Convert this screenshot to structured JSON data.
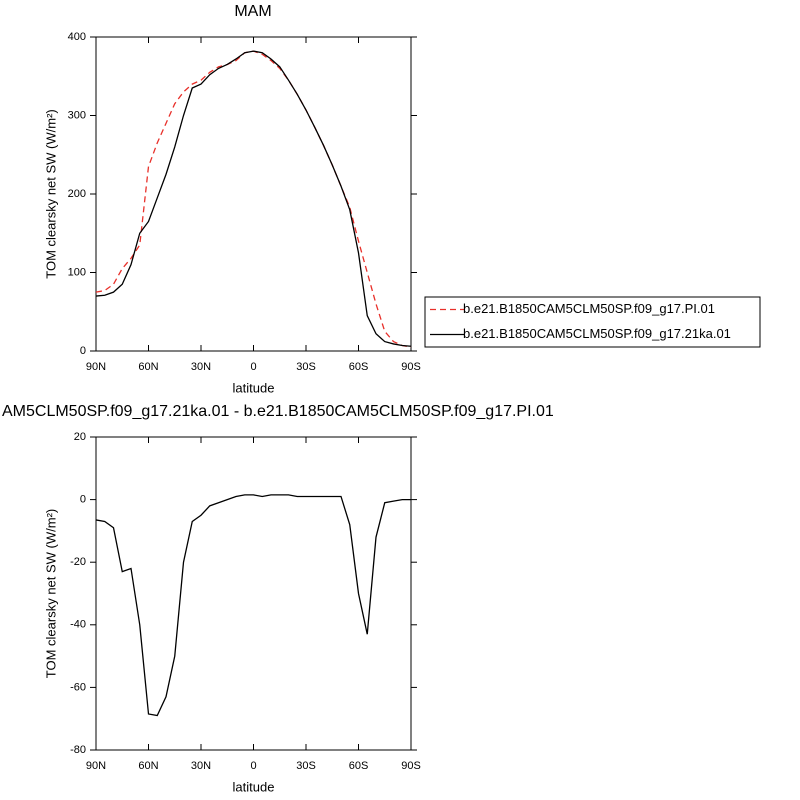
{
  "chart_data": [
    {
      "type": "line",
      "title": "MAM",
      "xlabel": "latitude",
      "ylabel": "TOM clearsky net SW (W/m²)",
      "x": [
        90,
        85,
        80,
        75,
        70,
        65,
        60,
        55,
        50,
        45,
        40,
        35,
        30,
        25,
        20,
        15,
        10,
        5,
        0,
        -5,
        -10,
        -15,
        -20,
        -25,
        -30,
        -35,
        -40,
        -45,
        -50,
        -55,
        -60,
        -65,
        -70,
        -75,
        -80,
        -85,
        -90
      ],
      "xlim": [
        90,
        -90
      ],
      "xticks": [
        {
          "value": 90,
          "label": "90N"
        },
        {
          "value": 60,
          "label": "60N"
        },
        {
          "value": 30,
          "label": "30N"
        },
        0,
        {
          "value": -30,
          "label": "30S"
        },
        {
          "value": -60,
          "label": "60S"
        },
        {
          "value": -90,
          "label": "90S"
        }
      ],
      "ylim": [
        0,
        400
      ],
      "yticks": [
        0,
        100,
        200,
        300,
        400
      ],
      "legend": "right",
      "series": [
        {
          "name": "b.e21.B1850CAM5CLM50SP.f09_g17.PI.01",
          "color": "#e8302a",
          "dashed": true,
          "values": [
            75,
            77,
            85,
            105,
            118,
            135,
            235,
            265,
            290,
            315,
            330,
            340,
            345,
            355,
            362,
            365,
            370,
            380,
            382,
            378,
            370,
            360,
            345,
            327,
            307,
            285,
            262,
            237,
            210,
            183,
            140,
            100,
            60,
            25,
            12,
            7,
            5
          ]
        },
        {
          "name": "b.e21.B1850CAM5CLM50SP.f09_g17.21ka.01",
          "color": "#000000",
          "dashed": false,
          "values": [
            70,
            71,
            75,
            85,
            110,
            150,
            165,
            195,
            225,
            260,
            300,
            335,
            340,
            352,
            360,
            365,
            372,
            380,
            382,
            380,
            372,
            362,
            345,
            327,
            307,
            285,
            262,
            237,
            210,
            180,
            125,
            45,
            22,
            12,
            9,
            7,
            6
          ]
        }
      ]
    },
    {
      "type": "line",
      "title": "AM5CLM50SP.f09_g17.21ka.01 - b.e21.B1850CAM5CLM50SP.f09_g17.PI.01",
      "xlabel": "latitude",
      "ylabel": "TOM clearsky net SW (W/m²)",
      "x": [
        90,
        85,
        80,
        75,
        70,
        65,
        60,
        55,
        50,
        45,
        40,
        35,
        30,
        25,
        20,
        15,
        10,
        5,
        0,
        -5,
        -10,
        -15,
        -20,
        -25,
        -30,
        -35,
        -40,
        -45,
        -50,
        -55,
        -60,
        -65,
        -70,
        -75,
        -80,
        -85,
        -90
      ],
      "xlim": [
        90,
        -90
      ],
      "xticks": [
        {
          "value": 90,
          "label": "90N"
        },
        {
          "value": 60,
          "label": "60N"
        },
        {
          "value": 30,
          "label": "30N"
        },
        0,
        {
          "value": -30,
          "label": "30S"
        },
        {
          "value": -60,
          "label": "60S"
        },
        {
          "value": -90,
          "label": "90S"
        }
      ],
      "ylim": [
        -80,
        20
      ],
      "yticks": [
        -80,
        -60,
        -40,
        -20,
        0,
        20
      ],
      "color": "#000000",
      "values": [
        -6.5,
        -7,
        -9,
        -23,
        -22,
        -40,
        -68.5,
        -69,
        -63,
        -50,
        -20,
        -7,
        -5,
        -2,
        -1,
        0,
        1,
        1.5,
        1.5,
        1,
        1.5,
        1.5,
        1.5,
        1,
        1,
        1,
        1,
        1,
        1,
        -8,
        -30,
        -43,
        -12,
        -1,
        -0.5,
        0,
        0
      ]
    }
  ]
}
